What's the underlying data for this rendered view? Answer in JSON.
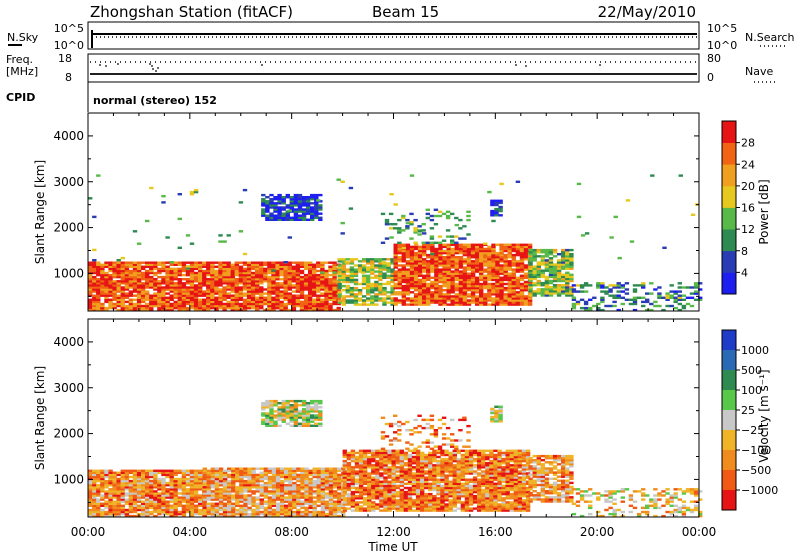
{
  "header": {
    "station": "Zhongshan Station (fitACF)",
    "beam": "Beam 15",
    "date": "22/May/2010"
  },
  "scan_panel": {
    "left_label": "N.Sky",
    "left_ticks": [
      "10^5",
      "10^0"
    ],
    "right_label": "N.Search",
    "right_ticks": [
      "10^5",
      "10^0"
    ]
  },
  "freq_panel": {
    "left_label_1": "Freq.",
    "left_label_2": "[MHz]",
    "left_ticks": [
      "18",
      "8"
    ],
    "right_label": "Nave",
    "right_ticks": [
      "80",
      "0"
    ],
    "cpid_label": "CPID",
    "mode": "normal (stereo) 152"
  },
  "chart_data": [
    {
      "type": "heatmap",
      "title": "",
      "quantity": "Power",
      "xlabel": "Time UT",
      "ylabel": "Slant Range [km]",
      "ylim": [
        180,
        4500
      ],
      "yticks": [
        "1000",
        "2000",
        "3000",
        "4000"
      ],
      "colorbar_label": "Power [dB]",
      "colorbar_ticks": [
        "4",
        "8",
        "12",
        "16",
        "20",
        "24",
        "28"
      ],
      "colorbar_colors": [
        "#1e1ef0",
        "#2a3cb4",
        "#2e8a50",
        "#58b848",
        "#e6c81e",
        "#f0a01e",
        "#f06414",
        "#e61414"
      ],
      "regions": [
        {
          "t0": 0.0,
          "t1": 9.8,
          "r0": 180,
          "r1": 1250,
          "level": 0.85,
          "density": 0.9
        },
        {
          "t0": 9.8,
          "t1": 12.0,
          "r0": 300,
          "r1": 1300,
          "level": 0.5,
          "density": 0.75
        },
        {
          "t0": 12.0,
          "t1": 17.3,
          "r0": 300,
          "r1": 1650,
          "level": 0.85,
          "density": 0.9
        },
        {
          "t0": 17.3,
          "t1": 19.0,
          "r0": 500,
          "r1": 1500,
          "level": 0.45,
          "density": 0.8
        },
        {
          "t0": 19.0,
          "t1": 24.0,
          "r0": 180,
          "r1": 800,
          "level": 0.3,
          "density": 0.35
        },
        {
          "t0": 6.8,
          "t1": 9.1,
          "r0": 2150,
          "r1": 2700,
          "level": 0.12,
          "density": 0.8
        },
        {
          "t0": 15.8,
          "t1": 16.2,
          "r0": 2250,
          "r1": 2600,
          "level": 0.12,
          "density": 0.8
        },
        {
          "t0": 11.5,
          "t1": 15.0,
          "r0": 1650,
          "r1": 2400,
          "level": 0.35,
          "density": 0.2
        },
        {
          "t0": 0.0,
          "t1": 24.0,
          "r0": 1000,
          "r1": 3200,
          "level": 0.4,
          "density": 0.01
        }
      ]
    },
    {
      "type": "heatmap",
      "title": "",
      "quantity": "Velocity",
      "xlabel": "Time UT",
      "ylabel": "Slant Range [km]",
      "ylim": [
        180,
        4500
      ],
      "yticks": [
        "1000",
        "2000",
        "3000",
        "4000"
      ],
      "colorbar_label": "Velocity [m s⁻¹]",
      "colorbar_ticks": [
        "1000",
        "500",
        "100",
        "25",
        "−25",
        "−100",
        "−500",
        "−1000"
      ],
      "colorbar_colors": [
        "#1e3cc8",
        "#2a6ab4",
        "#2e8a50",
        "#58c84a",
        "#c8c8c8",
        "#f0b428",
        "#f08c1e",
        "#f05a14",
        "#e61414"
      ],
      "regions": [
        {
          "t0": 0.0,
          "t1": 4.5,
          "r0": 180,
          "r1": 1200,
          "level": 0.72,
          "density": 0.9
        },
        {
          "t0": 4.5,
          "t1": 10.0,
          "r0": 180,
          "r1": 1250,
          "level": 0.68,
          "density": 0.9
        },
        {
          "t0": 10.0,
          "t1": 17.3,
          "r0": 300,
          "r1": 1650,
          "level": 0.75,
          "density": 0.9
        },
        {
          "t0": 17.3,
          "t1": 19.0,
          "r0": 500,
          "r1": 1500,
          "level": 0.7,
          "density": 0.8
        },
        {
          "t0": 19.0,
          "t1": 24.0,
          "r0": 180,
          "r1": 800,
          "level": 0.6,
          "density": 0.35
        },
        {
          "t0": 6.8,
          "t1": 9.1,
          "r0": 2150,
          "r1": 2700,
          "level": 0.5,
          "density": 0.8
        },
        {
          "t0": 15.8,
          "t1": 16.2,
          "r0": 2250,
          "r1": 2600,
          "level": 0.5,
          "density": 0.8
        },
        {
          "t0": 11.5,
          "t1": 15.0,
          "r0": 1650,
          "r1": 2400,
          "level": 0.72,
          "density": 0.2
        }
      ]
    }
  ],
  "time_axis": {
    "ticks": [
      "00:00",
      "04:00",
      "08:00",
      "12:00",
      "16:00",
      "20:00",
      "00:00"
    ],
    "label": "Time UT",
    "range_hours": [
      0,
      24
    ]
  }
}
